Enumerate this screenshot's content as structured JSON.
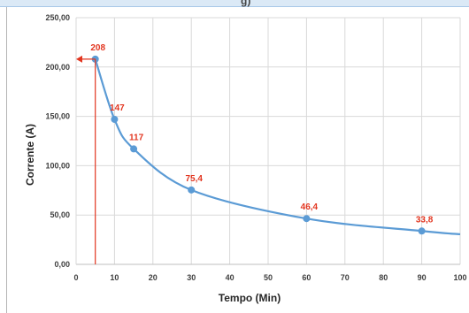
{
  "header_fragment": "g)",
  "chart_data": {
    "type": "line",
    "xlabel": "Tempo (Min)",
    "ylabel": "Corrente (A)",
    "xlim": [
      0,
      100
    ],
    "ylim": [
      0,
      250
    ],
    "x_ticks": [
      "0",
      "10",
      "20",
      "30",
      "40",
      "50",
      "60",
      "70",
      "80",
      "90",
      "100"
    ],
    "y_ticks": [
      "0,00",
      "50,00",
      "100,00",
      "150,00",
      "200,00",
      "250,00"
    ],
    "grid": true,
    "series": [
      {
        "color": "#5b9bd5",
        "x": [
          5,
          10,
          15,
          30,
          60,
          90,
          100
        ],
        "y": [
          208,
          147,
          117,
          75.4,
          46.4,
          33.8,
          30.5
        ]
      }
    ],
    "points": [
      {
        "x": 5,
        "y": 208,
        "label": "208"
      },
      {
        "x": 10,
        "y": 147,
        "label": "147"
      },
      {
        "x": 15,
        "y": 117,
        "label": "117"
      },
      {
        "x": 30,
        "y": 75.4,
        "label": "75,4"
      },
      {
        "x": 60,
        "y": 46.4,
        "label": "46,4"
      },
      {
        "x": 90,
        "y": 33.8,
        "label": "33,8"
      }
    ],
    "annotation": {
      "x": 5,
      "y": 208,
      "color": "#e2351f"
    }
  }
}
